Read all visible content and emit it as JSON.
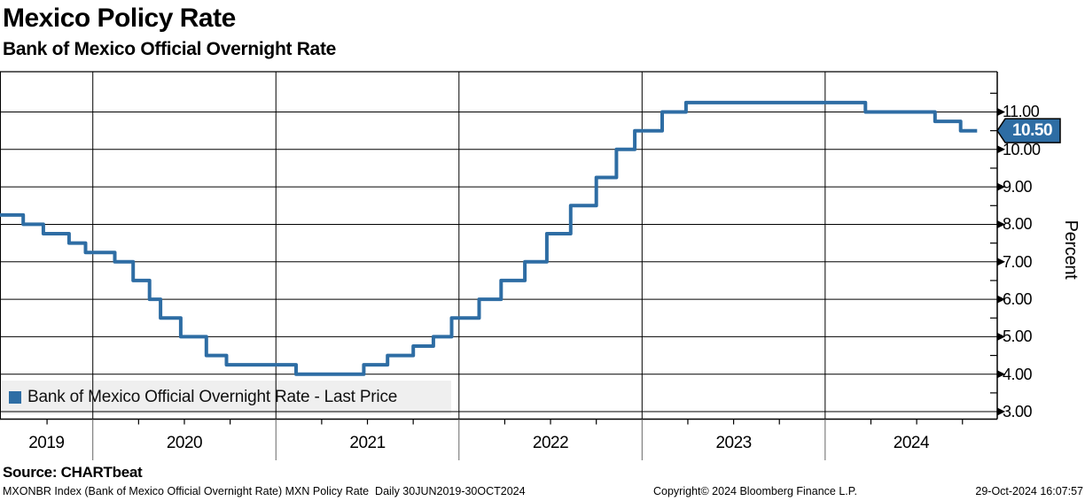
{
  "header": {
    "title": "Mexico Policy Rate",
    "subtitle": "Bank of Mexico Official Overnight Rate"
  },
  "legend": {
    "label": "Bank of Mexico Official Overnight Rate - Last Price",
    "swatch_color": "#2e6da4"
  },
  "last_price": {
    "value": "10.50",
    "box_color": "#2e6da4",
    "text_color": "#ffffff"
  },
  "source_line": "Source: CHARTbeat",
  "footer": {
    "left": "MXONBR Index (Bank of Mexico Official Overnight Rate) MXN Policy Rate  Daily 30JUN2019-30OCT2024",
    "center": "Copyright© 2024 Bloomberg Finance L.P.",
    "right": "29-Oct-2024 16:07:57"
  },
  "chart_data": {
    "type": "line",
    "step": true,
    "title": "Mexico Policy Rate",
    "subtitle": "Bank of Mexico Official Overnight Rate",
    "ylabel": "Percent",
    "grid": true,
    "legend_position": "bottom-left-overlay",
    "line_color": "#2e6da4",
    "x_domain": [
      2019.493,
      2024.94
    ],
    "y_domain": [
      2.8,
      12.075
    ],
    "x_tick_labels": [
      "2019",
      "2020",
      "2021",
      "2022",
      "2023",
      "2024"
    ],
    "x_gridlines": [
      2020,
      2021,
      2022,
      2023,
      2024
    ],
    "x_minor_ticks": [
      2019.75,
      2020.25,
      2020.5,
      2020.75,
      2021.25,
      2021.5,
      2021.75,
      2022.25,
      2022.5,
      2022.75,
      2023.25,
      2023.5,
      2023.75,
      2024.25,
      2024.5,
      2024.75
    ],
    "y_tick_labels": [
      "11.00",
      "10.00",
      "9.00",
      "8.00",
      "7.00",
      "6.00",
      "5.00",
      "4.00",
      "3.00"
    ],
    "y_gridlines": [
      3,
      4,
      5,
      6,
      7,
      8,
      9,
      10,
      11
    ],
    "y_minor_ticks": [
      3.5,
      4.5,
      5.5,
      6.5,
      7.5,
      8.5,
      9.5,
      10.5,
      11.5
    ],
    "series": [
      {
        "name": "Bank of Mexico Official Overnight Rate - Last Price",
        "color": "#2e6da4",
        "last_value": 10.5,
        "x_end": 2024.83,
        "points": [
          [
            2019.49,
            8.25
          ],
          [
            2019.62,
            8.0
          ],
          [
            2019.73,
            7.75
          ],
          [
            2019.87,
            7.5
          ],
          [
            2019.96,
            7.25
          ],
          [
            2020.12,
            7.0
          ],
          [
            2020.22,
            6.5
          ],
          [
            2020.31,
            6.0
          ],
          [
            2020.37,
            5.5
          ],
          [
            2020.48,
            5.0
          ],
          [
            2020.62,
            4.5
          ],
          [
            2020.73,
            4.25
          ],
          [
            2021.11,
            4.0
          ],
          [
            2021.48,
            4.25
          ],
          [
            2021.61,
            4.5
          ],
          [
            2021.75,
            4.75
          ],
          [
            2021.86,
            5.0
          ],
          [
            2021.96,
            5.5
          ],
          [
            2022.11,
            6.0
          ],
          [
            2022.23,
            6.5
          ],
          [
            2022.36,
            7.0
          ],
          [
            2022.48,
            7.75
          ],
          [
            2022.61,
            8.5
          ],
          [
            2022.75,
            9.25
          ],
          [
            2022.86,
            10.0
          ],
          [
            2022.96,
            10.5
          ],
          [
            2023.11,
            11.0
          ],
          [
            2023.24,
            11.25
          ],
          [
            2024.22,
            11.0
          ],
          [
            2024.6,
            10.75
          ],
          [
            2024.74,
            10.5
          ]
        ]
      }
    ]
  }
}
